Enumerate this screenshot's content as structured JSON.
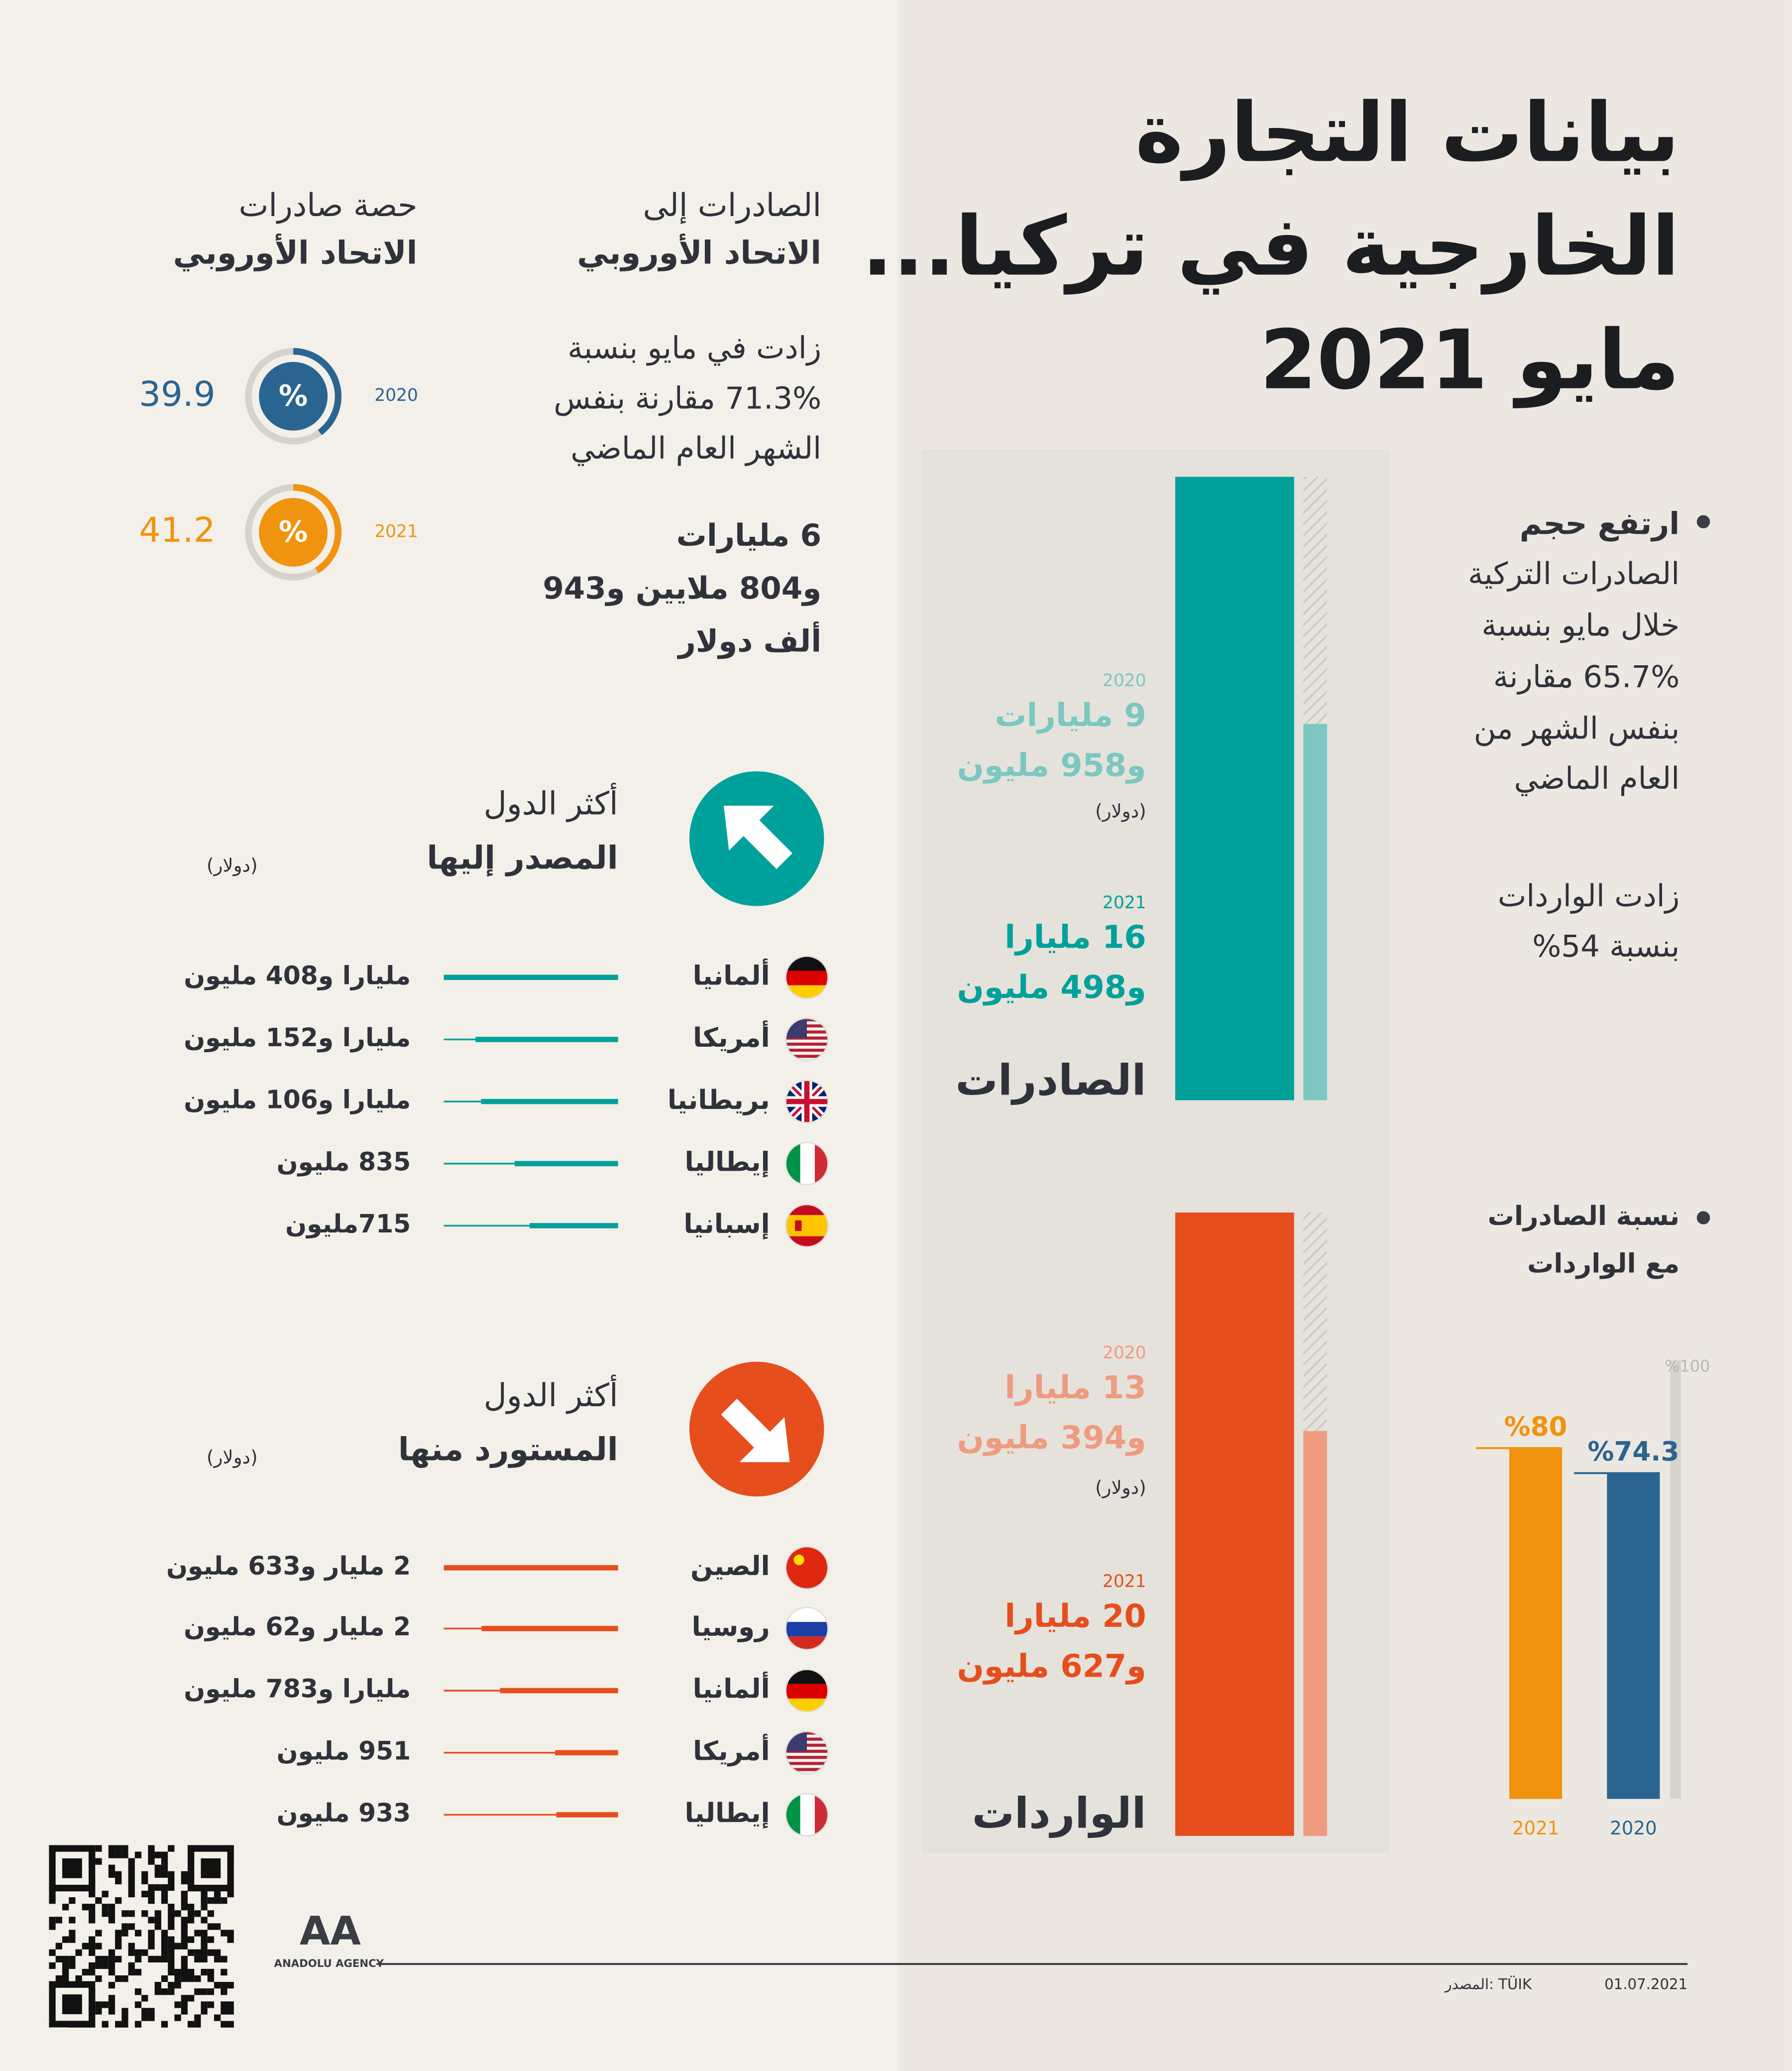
{
  "header": {
    "title": [
      "بيانات التجارة",
      "الخارجية في تركيا...",
      "مايو 2021"
    ]
  },
  "summary": {
    "exports_text": [
      "ارتفع حجم",
      "الصادرات التركية",
      "خلال مايو بنسبة",
      "65.7% مقارنة",
      "بنفس الشهر من",
      "العام الماضي"
    ],
    "imports_text": [
      "زادت الواردات",
      "بنسبة 54%"
    ]
  },
  "trade": [
    {
      "name": "الصادرات",
      "unit": "(دولار)",
      "color": "#00a19a",
      "light": "#7cc7c1",
      "values": [
        {
          "year": "2020",
          "value": 9.958,
          "value_labels": [
            "9 مليارات",
            "و958 مليون"
          ]
        },
        {
          "year": "2021",
          "value": 16.498,
          "value_labels": [
            "16 مليارا",
            "و498 مليون"
          ]
        }
      ]
    },
    {
      "name": "الواردات",
      "unit": "(دولار)",
      "color": "#e64e1d",
      "light": "#ef9b80",
      "values": [
        {
          "year": "2020",
          "value": 13.394,
          "value_labels": [
            "13 مليارا",
            "و394 مليون"
          ]
        },
        {
          "year": "2021",
          "value": 20.627,
          "value_labels": [
            "20 مليارا",
            "و627 مليون"
          ]
        }
      ]
    }
  ],
  "ratio": {
    "title": [
      "نسبة الصادرات",
      "مع الواردات"
    ],
    "max": {
      "value": 100,
      "label": "%100"
    },
    "bars": [
      {
        "year": "2021",
        "value": 80,
        "value_label": "%80",
        "color": "#f0930f"
      },
      {
        "year": "2020",
        "value": 74.3,
        "value_label": "%74.3",
        "color": "#2a6491"
      }
    ]
  },
  "eu": {
    "exports_title": [
      "الصادرات إلى",
      "الاتحاد الأوروبي"
    ],
    "exports_text": [
      "زادت في مايو بنسبة",
      "71.3% مقارنة بنفس",
      "الشهر العام الماضي"
    ],
    "exports_amount": [
      "6 مليارات",
      "و804 ملايين و943",
      "ألف دولار"
    ],
    "share_title": [
      "حصة صادرات",
      "الاتحاد الأوروبي"
    ],
    "share_symbol": "%",
    "share": [
      {
        "year": "2020",
        "value": 39.9,
        "color": "#2a6491"
      },
      {
        "year": "2021",
        "value": 41.2,
        "color": "#f0930f"
      }
    ]
  },
  "top_countries": [
    {
      "title": [
        "أكثر الدول",
        "المصدر إليها"
      ],
      "unit": "(دولار)",
      "color": "#00a19a",
      "rows": [
        {
          "country": "ألمانيا",
          "value": 1408,
          "value_label": "مليارا و408 مليون"
        },
        {
          "country": "أمريكا",
          "value": 1152,
          "value_label": "مليارا و152 مليون"
        },
        {
          "country": "بريطانيا",
          "value": 1106,
          "value_label": "مليارا و106 مليون"
        },
        {
          "country": "إيطاليا",
          "value": 835,
          "value_label": "835 مليون"
        },
        {
          "country": "إسبانيا",
          "value": 715,
          "value_label": "715مليون"
        }
      ]
    },
    {
      "title": [
        "أكثر الدول",
        "المستورد منها"
      ],
      "unit": "(دولار)",
      "color": "#e64e1d",
      "rows": [
        {
          "country": "الصين",
          "value": 2633,
          "value_label": "2 مليار و633 مليون"
        },
        {
          "country": "روسيا",
          "value": 2062,
          "value_label": "2 مليار و62 مليون"
        },
        {
          "country": "ألمانيا",
          "value": 1783,
          "value_label": "مليارا و783 مليون"
        },
        {
          "country": "أمريكا",
          "value": 951,
          "value_label": "951 مليون"
        },
        {
          "country": "إيطاليا",
          "value": 933,
          "value_label": "933 مليون"
        }
      ]
    }
  ],
  "footer": {
    "logo": "AA",
    "agency": "ANADOLU AGENCY",
    "source": "TÜIK :المصدر",
    "date": "01.07.2021"
  }
}
